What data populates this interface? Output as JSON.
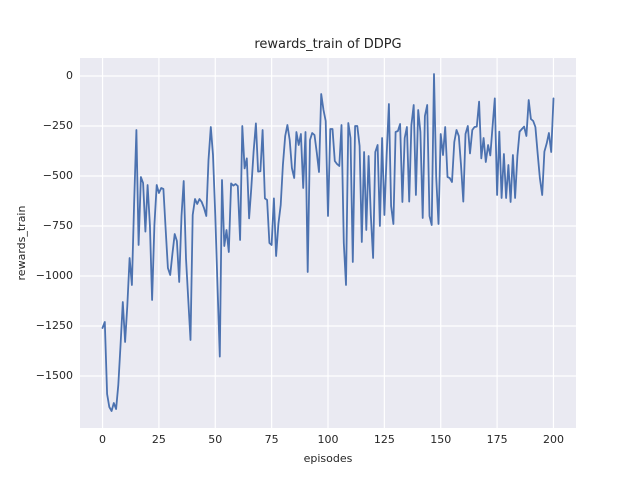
{
  "chart_data": {
    "type": "line",
    "title": "rewards_train of DDPG",
    "xlabel": "episodes",
    "ylabel": "rewards_train",
    "xlim": [
      -10,
      210
    ],
    "ylim": [
      -1760,
      90
    ],
    "xticks": [
      0,
      25,
      50,
      75,
      100,
      125,
      150,
      175,
      200
    ],
    "xticklabels": [
      "0",
      "25",
      "50",
      "75",
      "100",
      "125",
      "150",
      "175",
      "200"
    ],
    "yticks": [
      0,
      -250,
      -500,
      -750,
      -1000,
      -1250,
      -1500
    ],
    "yticklabels": [
      "0",
      "−250",
      "−500",
      "−750",
      "−1000",
      "−1250",
      "−1500"
    ],
    "grid": true,
    "legend": "none",
    "plot_background": "#eaeaf2",
    "grid_color": "#ffffff",
    "line_color": "#4c72b0",
    "text_color": "#262626",
    "x_description": "episode index 0..200, one value per episode",
    "values": [
      -1260,
      -1230,
      -1590,
      -1655,
      -1675,
      -1635,
      -1665,
      -1545,
      -1340,
      -1130,
      -1330,
      -1150,
      -910,
      -1045,
      -640,
      -270,
      -845,
      -505,
      -535,
      -778,
      -545,
      -745,
      -1120,
      -745,
      -545,
      -585,
      -560,
      -565,
      -770,
      -960,
      -995,
      -890,
      -790,
      -825,
      -1030,
      -700,
      -525,
      -912,
      -1112,
      -1320,
      -695,
      -615,
      -640,
      -615,
      -630,
      -660,
      -700,
      -420,
      -255,
      -395,
      -700,
      -1050,
      -1403,
      -520,
      -850,
      -770,
      -880,
      -537,
      -548,
      -540,
      -550,
      -820,
      -250,
      -462,
      -412,
      -712,
      -560,
      -378,
      -237,
      -478,
      -476,
      -270,
      -612,
      -620,
      -835,
      -845,
      -612,
      -900,
      -740,
      -645,
      -445,
      -300,
      -245,
      -320,
      -460,
      -510,
      -280,
      -345,
      -290,
      -560,
      -280,
      -980,
      -320,
      -285,
      -295,
      -380,
      -480,
      -90,
      -170,
      -225,
      -700,
      -265,
      -265,
      -425,
      -440,
      -450,
      -245,
      -835,
      -1045,
      -235,
      -310,
      -930,
      -250,
      -250,
      -350,
      -830,
      -380,
      -770,
      -400,
      -695,
      -910,
      -380,
      -345,
      -750,
      -310,
      -695,
      -400,
      -140,
      -650,
      -740,
      -280,
      -275,
      -240,
      -630,
      -310,
      -255,
      -628,
      -245,
      -145,
      -595,
      -170,
      -280,
      -710,
      -200,
      -145,
      -700,
      -745,
      10,
      -505,
      -740,
      -290,
      -395,
      -255,
      -505,
      -510,
      -530,
      -330,
      -270,
      -300,
      -445,
      -628,
      -290,
      -250,
      -387,
      -270,
      -255,
      -253,
      -128,
      -412,
      -310,
      -430,
      -345,
      -397,
      -250,
      -112,
      -595,
      -278,
      -610,
      -390,
      -610,
      -445,
      -630,
      -395,
      -610,
      -400,
      -278,
      -265,
      -253,
      -300,
      -120,
      -215,
      -225,
      -255,
      -390,
      -512,
      -595,
      -378,
      -337,
      -285,
      -380,
      -112
    ]
  }
}
